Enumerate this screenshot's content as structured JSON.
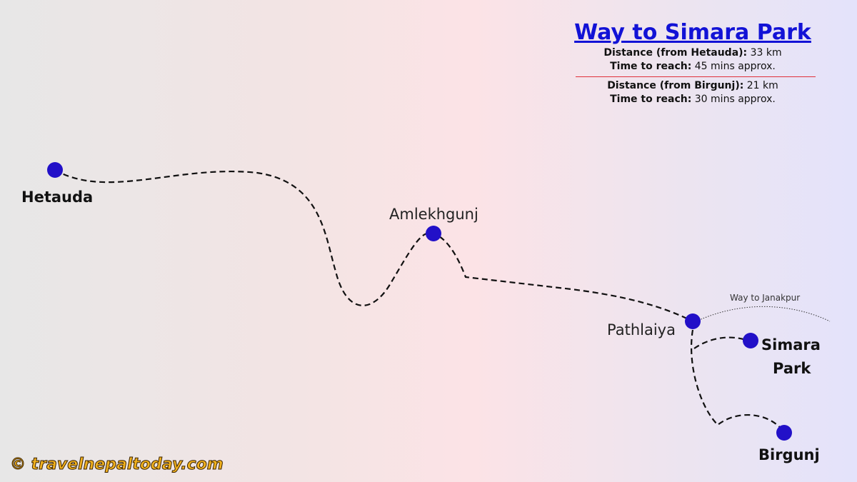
{
  "info": {
    "title": "Way to Simara Park",
    "hetauda_distance_label": "Distance (from Hetauda):",
    "hetauda_distance_value": " 33 km",
    "hetauda_time_label": "Time to reach:",
    "hetauda_time_value": " 45 mins approx.",
    "birgunj_distance_label": "Distance (from Birgunj):",
    "birgunj_distance_value": " 21 km",
    "birgunj_time_label": "Time to reach:",
    "birgunj_time_value": " 30 mins approx."
  },
  "places": {
    "hetauda": "Hetauda",
    "amlekhgunj": "Amlekhgunj",
    "pathlaiya": "Pathlaiya",
    "simara_line1": "Simara",
    "simara_line2": "Park",
    "birgunj": "Birgunj",
    "janakpur_route": "Way to Janakpur"
  },
  "watermark": "© travelnepaltoday.com",
  "colors": {
    "marker": "#2210c8",
    "title": "#1212d6",
    "separator": "#e0303a",
    "watermark": "#f2b21e"
  }
}
